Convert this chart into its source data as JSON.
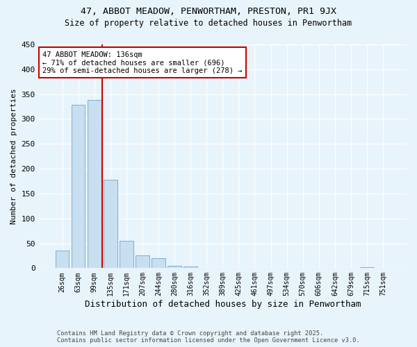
{
  "title1": "47, ABBOT MEADOW, PENWORTHAM, PRESTON, PR1 9JX",
  "title2": "Size of property relative to detached houses in Penwortham",
  "xlabel": "Distribution of detached houses by size in Penwortham",
  "ylabel": "Number of detached properties",
  "bar_labels": [
    "26sqm",
    "63sqm",
    "99sqm",
    "135sqm",
    "171sqm",
    "207sqm",
    "244sqm",
    "280sqm",
    "316sqm",
    "352sqm",
    "389sqm",
    "425sqm",
    "461sqm",
    "497sqm",
    "534sqm",
    "570sqm",
    "606sqm",
    "642sqm",
    "679sqm",
    "715sqm",
    "751sqm"
  ],
  "bar_values": [
    35,
    328,
    338,
    178,
    55,
    25,
    20,
    5,
    3,
    1,
    1,
    0,
    0,
    0,
    1,
    0,
    0,
    0,
    0,
    2,
    0
  ],
  "bar_color": "#c8dff0",
  "bar_edge_color": "#7aafd4",
  "red_line_x": 2.5,
  "red_line_color": "#cc0000",
  "annotation_text": "47 ABBOT MEADOW: 136sqm\n← 71% of detached houses are smaller (696)\n29% of semi-detached houses are larger (278) →",
  "annotation_box_color": "#ffffff",
  "annotation_box_edge": "#cc0000",
  "ylim": [
    0,
    450
  ],
  "yticks": [
    0,
    50,
    100,
    150,
    200,
    250,
    300,
    350,
    400,
    450
  ],
  "footer1": "Contains HM Land Registry data © Crown copyright and database right 2025.",
  "footer2": "Contains public sector information licensed under the Open Government Licence v3.0.",
  "background_color": "#e8f4fb",
  "grid_color": "#ffffff"
}
